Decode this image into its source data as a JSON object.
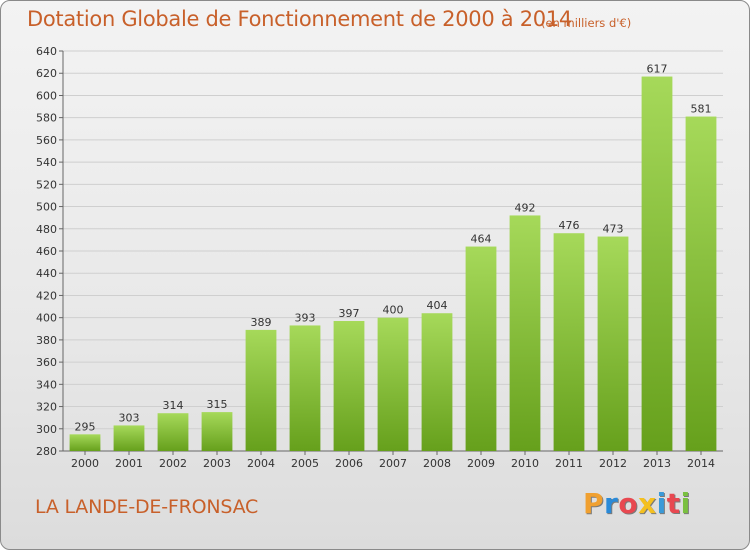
{
  "header": {
    "title": "Dotation Globale de Fonctionnement de 2000 à 2014",
    "unit": "(en milliers d'€)"
  },
  "footer": {
    "commune": "LA LANDE-DE-FRONSAC",
    "logo_letters": [
      "P",
      "r",
      "o",
      "x",
      "i",
      "t",
      "i"
    ],
    "logo_colors": [
      "#f0a030",
      "#2a8ad8",
      "#e84850",
      "#f4c020",
      "#3a9ad8",
      "#e84850",
      "#7ac040"
    ]
  },
  "chart_data": {
    "type": "bar",
    "title": "Dotation Globale de Fonctionnement de 2000 à 2014",
    "categories": [
      "2000",
      "2001",
      "2002",
      "2003",
      "2004",
      "2005",
      "2006",
      "2007",
      "2008",
      "2009",
      "2010",
      "2011",
      "2012",
      "2013",
      "2014"
    ],
    "values": [
      295,
      303,
      314,
      315,
      389,
      393,
      397,
      400,
      404,
      464,
      492,
      476,
      473,
      617,
      581
    ],
    "value_labels": [
      "295",
      "303",
      "314",
      "315",
      "389",
      "393",
      "397",
      "400",
      "404",
      "464",
      "492",
      "476",
      "473",
      "617",
      "581"
    ],
    "ylim": [
      280,
      640
    ],
    "yticks": [
      "280",
      "300",
      "320",
      "340",
      "360",
      "380",
      "400",
      "420",
      "440",
      "460",
      "480",
      "500",
      "520",
      "540",
      "560",
      "580",
      "600",
      "620",
      "640"
    ],
    "colors": {
      "bar_light": "#a6d95a",
      "bar_dark": "#66a01c",
      "grid": "#cfcfcf",
      "axis": "#666666",
      "text": "#333333"
    },
    "grid": true
  }
}
